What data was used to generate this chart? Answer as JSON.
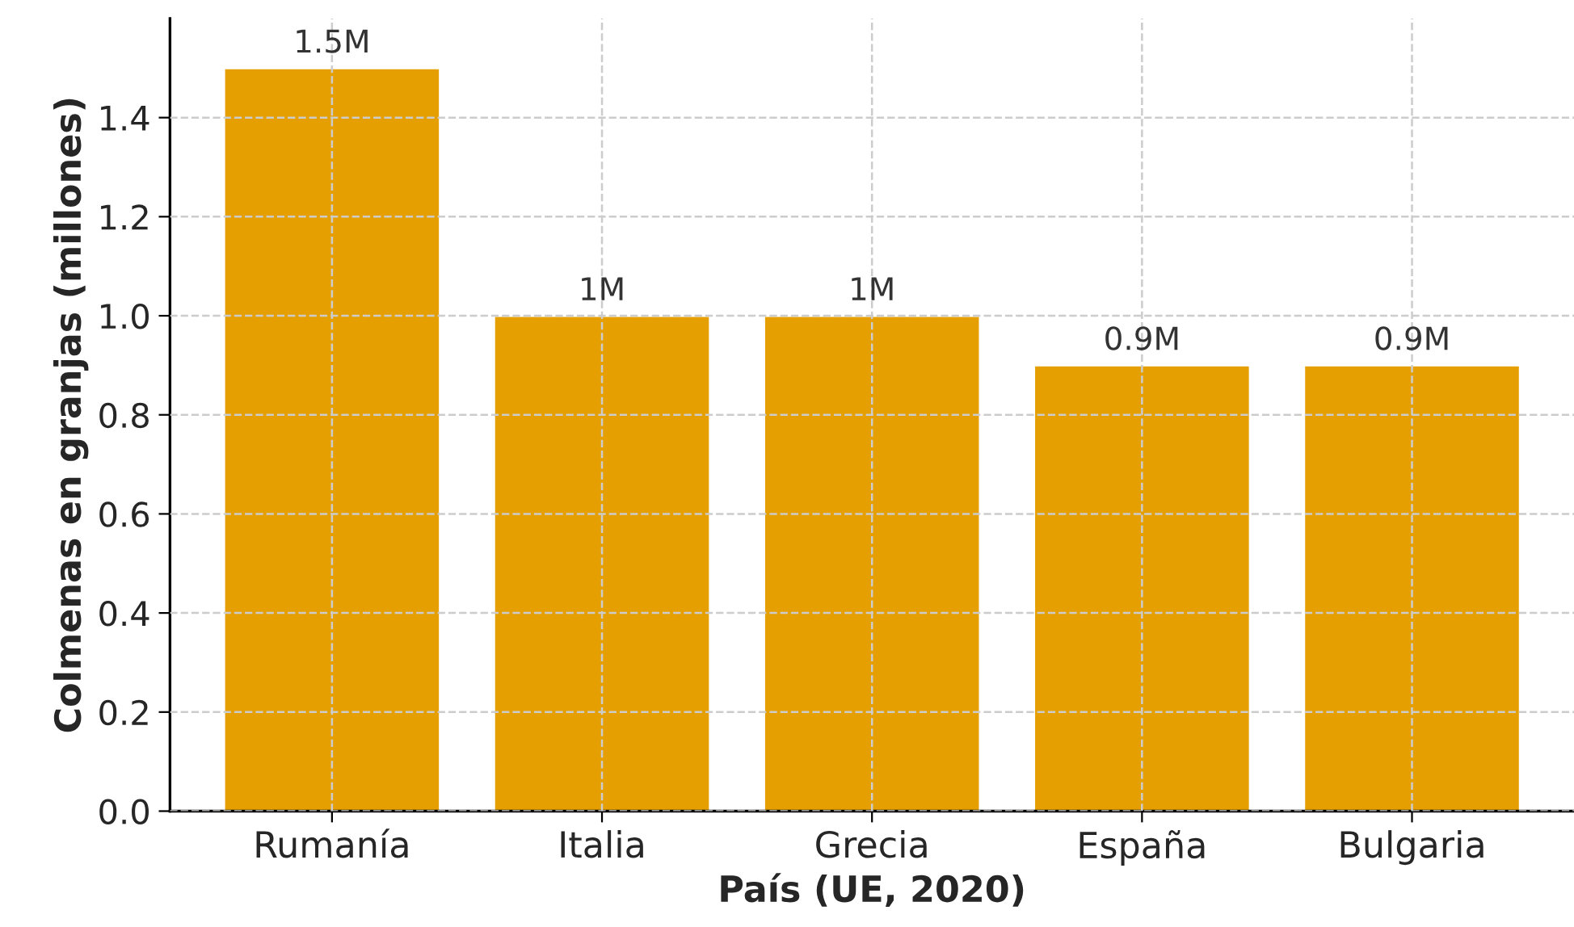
{
  "chart_data": {
    "type": "bar",
    "xlabel": "País (UE, 2020)",
    "ylabel": "Colmenas en granjas (millones)",
    "categories": [
      "Rumanía",
      "Italia",
      "Grecia",
      "España",
      "Bulgaria"
    ],
    "values": [
      1.5,
      1.0,
      1.0,
      0.9,
      0.9
    ],
    "value_labels": [
      "1.5M",
      "1M",
      "1M",
      "0.9M",
      "0.9M"
    ],
    "color": "#e69f00",
    "ylim": [
      0,
      1.6
    ],
    "yticks": [
      {
        "value": 0,
        "label": "0.0"
      },
      0.2,
      0.4,
      0.6,
      0.8,
      {
        "value": 1,
        "label": "1.0"
      },
      1.2,
      1.4
    ],
    "grid": true
  }
}
